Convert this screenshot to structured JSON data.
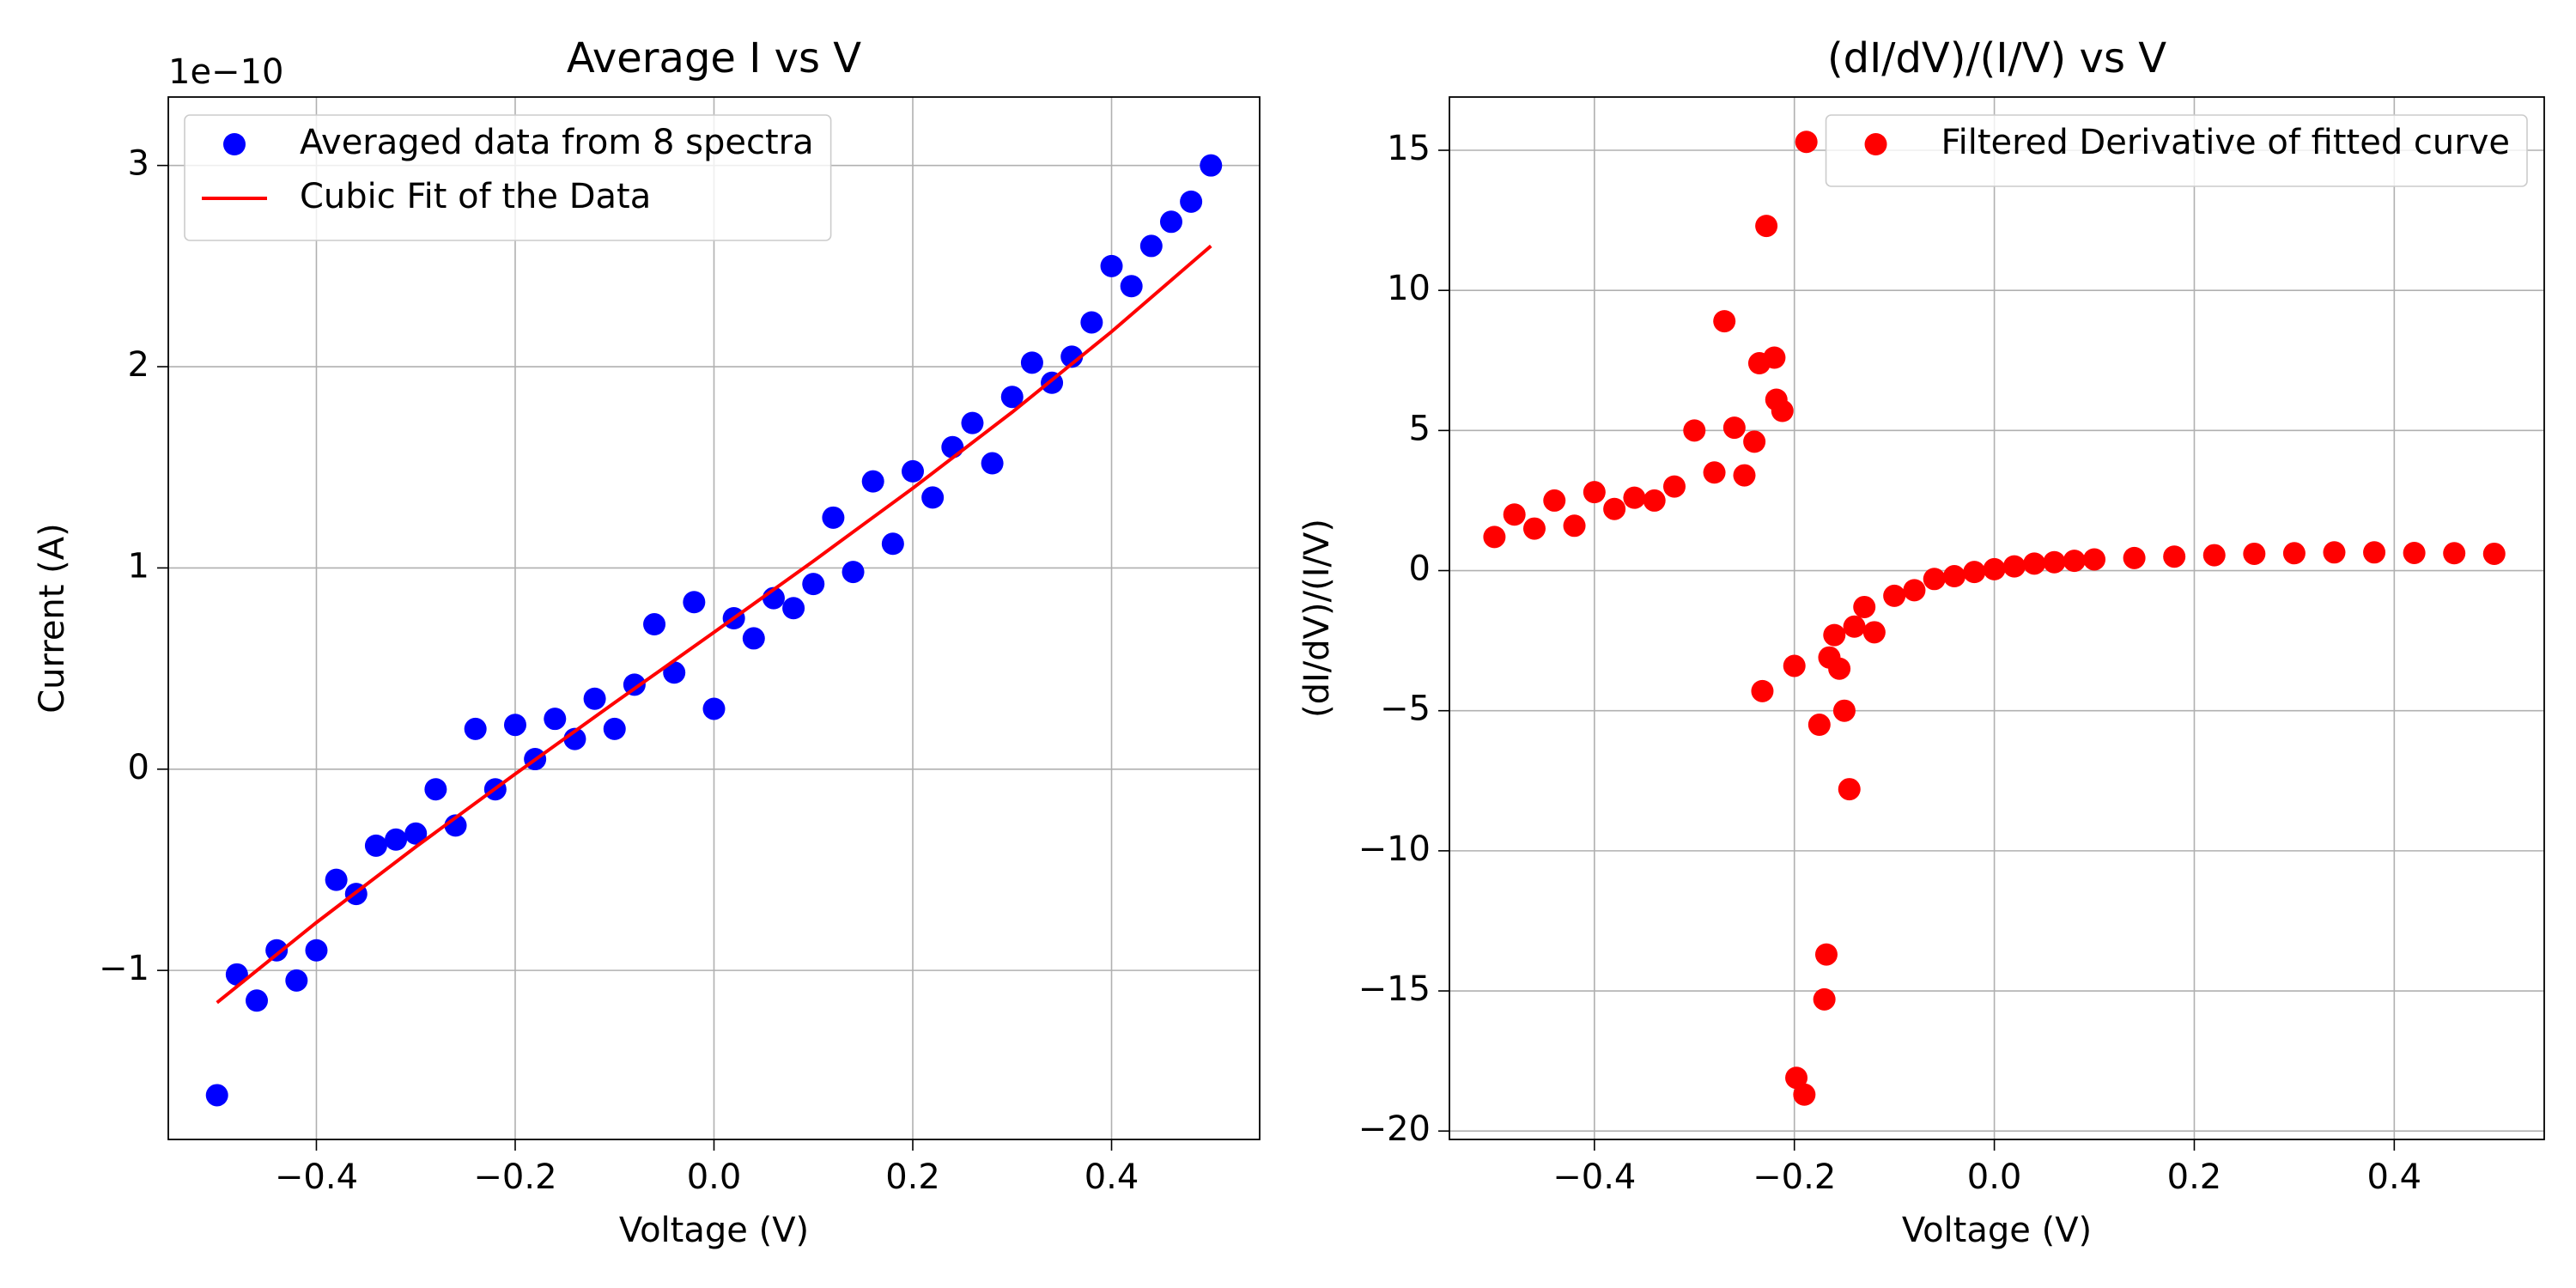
{
  "chart_data": [
    {
      "type": "scatter",
      "title": "Average I vs V",
      "x_label": "Voltage (V)",
      "y_label": "Current (A)",
      "offset_text": "1e−10",
      "xlim": [
        -0.549,
        0.549
      ],
      "ylim": [
        -1.84,
        3.34
      ],
      "xticks": [
        {
          "value": -0.4,
          "label": "−0.4"
        },
        {
          "value": -0.2,
          "label": "−0.2"
        },
        {
          "value": 0,
          "label": "0.0"
        },
        0.2,
        0.4
      ],
      "yticks": [
        {
          "value": -1,
          "label": "−1"
        },
        0,
        1,
        2,
        3
      ],
      "grid": true,
      "legend": "upper left",
      "series": [
        {
          "name": "Averaged data from 8 spectra",
          "color": "#0000ff",
          "mode": "markers",
          "x": [
            -0.5,
            -0.48,
            -0.46,
            -0.44,
            -0.42,
            -0.4,
            -0.38,
            -0.36,
            -0.34,
            -0.32,
            -0.3,
            -0.28,
            -0.26,
            -0.24,
            -0.22,
            -0.2,
            -0.18,
            -0.16,
            -0.14,
            -0.12,
            -0.1,
            -0.08,
            -0.06,
            -0.04,
            -0.02,
            0,
            0.02,
            0.04,
            0.06,
            0.08,
            0.1,
            0.12,
            0.14,
            0.16,
            0.18,
            0.2,
            0.22,
            0.24,
            0.26,
            0.28,
            0.3,
            0.32,
            0.34,
            0.36,
            0.38,
            0.4,
            0.42,
            0.44,
            0.46,
            0.48,
            0.5
          ],
          "values": [
            -1.62,
            -1.02,
            -1.15,
            -0.9,
            -1.05,
            -0.9,
            -0.55,
            -0.62,
            -0.38,
            -0.35,
            -0.32,
            -0.1,
            -0.28,
            0.2,
            -0.1,
            0.22,
            0.05,
            0.25,
            0.15,
            0.35,
            0.2,
            0.42,
            0.72,
            0.48,
            0.83,
            0.3,
            0.75,
            0.65,
            0.85,
            0.8,
            0.92,
            1.25,
            0.98,
            1.43,
            1.12,
            1.48,
            1.35,
            1.6,
            1.72,
            1.52,
            1.85,
            2.02,
            1.92,
            2.05,
            2.22,
            2.5,
            2.4,
            2.6,
            2.72,
            2.82,
            3.0
          ]
        },
        {
          "name": "Cubic Fit of the Data",
          "color": "#ff0000",
          "mode": "line",
          "x": [
            -0.5,
            -0.4,
            -0.3,
            -0.2,
            -0.1,
            0,
            0.1,
            0.2,
            0.3,
            0.4,
            0.5
          ],
          "values": [
            -1.16,
            -0.762,
            -0.386,
            -0.024,
            0.33,
            0.68,
            1.034,
            1.396,
            1.774,
            2.174,
            2.6
          ]
        }
      ]
    },
    {
      "type": "scatter",
      "title": "(dI/dV)/(I/V) vs V",
      "x_label": "Voltage (V)",
      "y_label": "(dI/dV)/(I/V)",
      "xlim": [
        -0.545,
        0.55
      ],
      "ylim": [
        -20.3,
        16.9
      ],
      "xticks": [
        {
          "value": -0.4,
          "label": "−0.4"
        },
        {
          "value": -0.2,
          "label": "−0.2"
        },
        {
          "value": 0,
          "label": "0.0"
        },
        0.2,
        0.4
      ],
      "yticks": [
        {
          "value": -20,
          "label": "−20"
        },
        {
          "value": -15,
          "label": "−15"
        },
        {
          "value": -10,
          "label": "−10"
        },
        {
          "value": -5,
          "label": "−5"
        },
        0,
        5,
        10,
        15
      ],
      "grid": true,
      "legend": "upper right",
      "series": [
        {
          "name": "Filtered Derivative of fitted curve",
          "color": "#ff0000",
          "mode": "markers",
          "x": [
            -0.5,
            -0.48,
            -0.46,
            -0.44,
            -0.42,
            -0.4,
            -0.38,
            -0.36,
            -0.34,
            -0.32,
            -0.3,
            -0.28,
            -0.27,
            -0.26,
            -0.25,
            -0.24,
            -0.235,
            -0.232,
            -0.228,
            -0.22,
            -0.218,
            -0.212,
            -0.2,
            -0.198,
            -0.19,
            -0.188,
            -0.175,
            -0.17,
            -0.168,
            -0.165,
            -0.16,
            -0.155,
            -0.15,
            -0.145,
            -0.14,
            -0.13,
            -0.12,
            -0.1,
            -0.08,
            -0.06,
            -0.04,
            -0.02,
            0,
            0.02,
            0.04,
            0.06,
            0.08,
            0.1,
            0.14,
            0.18,
            0.22,
            0.26,
            0.3,
            0.34,
            0.38,
            0.42,
            0.46,
            0.5
          ],
          "values": [
            1.2,
            2.0,
            1.5,
            2.5,
            1.6,
            2.8,
            2.2,
            2.6,
            2.5,
            3.0,
            5.0,
            3.5,
            8.9,
            5.1,
            3.4,
            4.6,
            7.4,
            -4.3,
            12.3,
            7.6,
            6.1,
            5.7,
            -3.4,
            -18.1,
            -18.7,
            15.3,
            -5.5,
            -15.3,
            -13.7,
            -3.1,
            -2.3,
            -3.5,
            -5.0,
            -7.8,
            -2.0,
            -1.3,
            -2.2,
            -0.9,
            -0.7,
            -0.3,
            -0.2,
            -0.05,
            0.05,
            0.15,
            0.25,
            0.3,
            0.35,
            0.4,
            0.45,
            0.5,
            0.55,
            0.6,
            0.62,
            0.65,
            0.65,
            0.63,
            0.62,
            0.6
          ]
        }
      ]
    }
  ]
}
